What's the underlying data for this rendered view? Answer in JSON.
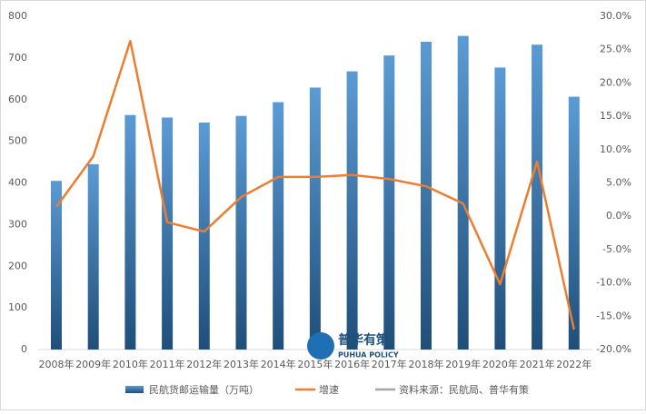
{
  "chart_data": {
    "type": "bar_line",
    "categories": [
      "2008年",
      "2009年",
      "2010年",
      "2011年",
      "2012年",
      "2013年",
      "2014年",
      "2015年",
      "2016年",
      "2017年",
      "2018年",
      "2019年",
      "2020年",
      "2021年",
      "2022年"
    ],
    "series": [
      {
        "name": "民航货邮运输量（万吨）",
        "type": "bar",
        "color": "#5b9bd5",
        "axis": "y",
        "values": [
          405,
          445,
          563,
          557,
          545,
          561,
          594,
          629,
          668,
          706,
          739,
          753,
          677,
          732,
          607
        ]
      },
      {
        "name": "增速",
        "type": "line",
        "color": "#ed7d31",
        "axis": "y2",
        "values": [
          1.4,
          9.0,
          26.3,
          -0.9,
          -2.3,
          2.9,
          5.9,
          5.9,
          6.2,
          5.6,
          4.5,
          1.9,
          -10.2,
          8.2,
          -17.0
        ]
      }
    ],
    "source": "资料来源：民航局、普华有策",
    "source_color": "#a5a5a5",
    "watermark": [
      "普华有策",
      "PUHUA POLICY"
    ],
    "ylim": [
      0,
      800
    ],
    "yticks": [
      0,
      100,
      200,
      300,
      400,
      500,
      600,
      700,
      800
    ],
    "y2lim": [
      -20,
      30
    ],
    "y2ticks": [
      {
        "value": -20,
        "label": "-20.0%"
      },
      {
        "value": -15,
        "label": "-15.0%"
      },
      {
        "value": -10,
        "label": "-10.0%"
      },
      {
        "value": -5,
        "label": "-5.0%"
      },
      {
        "value": 0,
        "label": "0.0%"
      },
      {
        "value": 5,
        "label": "5.0%"
      },
      {
        "value": 10,
        "label": "10.0%"
      },
      {
        "value": 15,
        "label": "15.0%"
      },
      {
        "value": 20,
        "label": "20.0%"
      },
      {
        "value": 25,
        "label": "25.0%"
      },
      {
        "value": 30,
        "label": "30.0%"
      }
    ],
    "grid": false
  }
}
